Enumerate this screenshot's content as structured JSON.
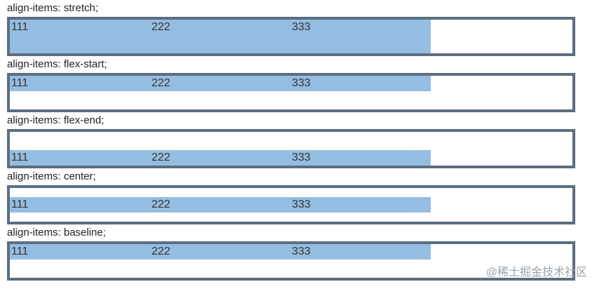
{
  "sections": [
    {
      "label": "align-items: stretch;",
      "items": [
        "111",
        "222",
        "333"
      ]
    },
    {
      "label": "align-items: flex-start;",
      "items": [
        "111",
        "222",
        "333"
      ]
    },
    {
      "label": "align-items: flex-end;",
      "items": [
        "111",
        "222",
        "333"
      ]
    },
    {
      "label": "align-items: center;",
      "items": [
        "111",
        "222",
        "333"
      ]
    },
    {
      "label": "align-items: baseline;",
      "items": [
        "111",
        "222",
        "333"
      ]
    }
  ],
  "watermark": "@稀土掘金技术社区"
}
